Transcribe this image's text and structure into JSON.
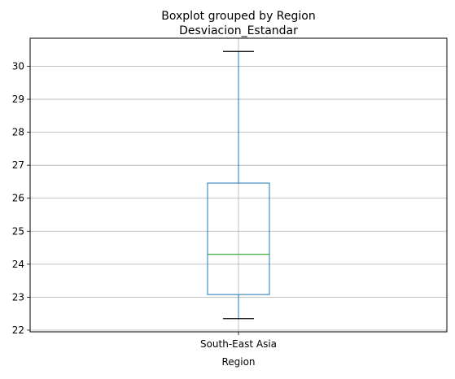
{
  "chart_data": {
    "type": "boxplot",
    "suptitle": "Boxplot grouped by Region",
    "title": "Desviacion_Estandar",
    "xlabel": "Region",
    "ylabel": "",
    "categories": [
      "South-East Asia"
    ],
    "boxes": [
      {
        "category": "South-East Asia",
        "whisker_low": 22.35,
        "q1": 23.08,
        "median": 24.3,
        "q3": 26.46,
        "whisker_high": 30.45
      }
    ],
    "ylim": [
      21.95,
      30.85
    ],
    "yticks": [
      22,
      23,
      24,
      25,
      26,
      27,
      28,
      29,
      30
    ],
    "grid": true,
    "colors": {
      "box": "#1f77b4",
      "median": "#2ca02c",
      "whisker_cap": "#000000",
      "grid": "#b0b0b0",
      "axes": "#000000"
    }
  }
}
